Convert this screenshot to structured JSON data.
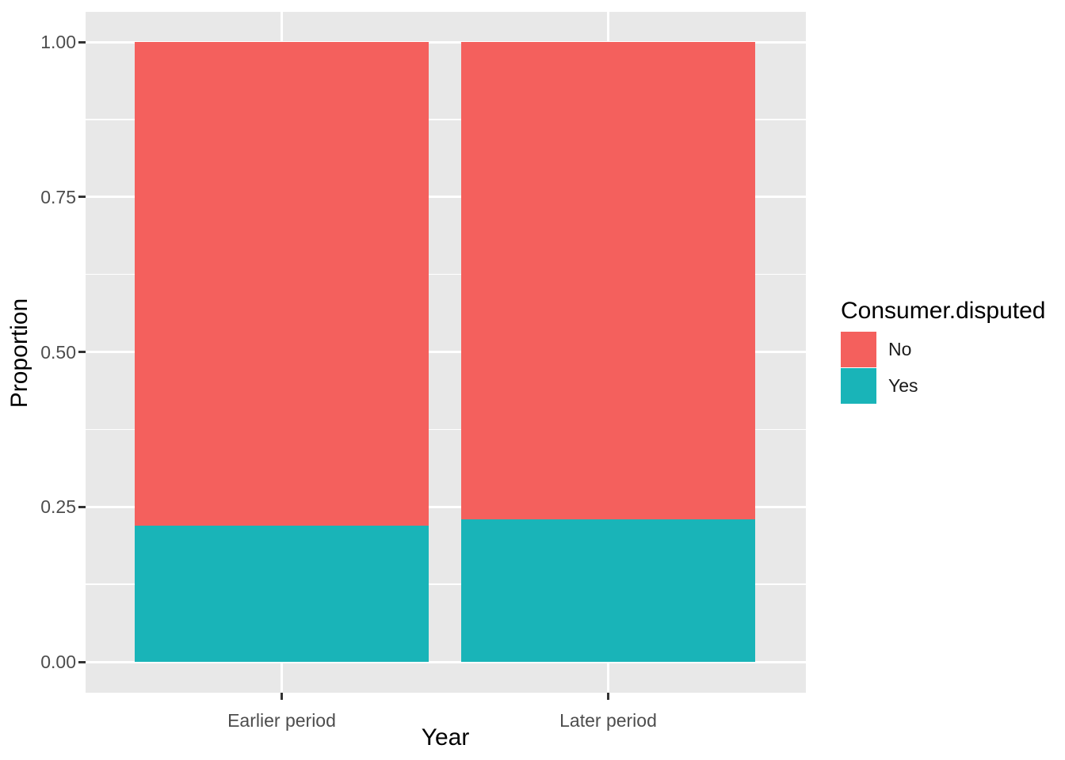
{
  "figure": {
    "background": "#FFFFFF",
    "panel_background": "#E8E8E8",
    "gridline_color": "#FFFFFF",
    "axis_text_color": "#4D4D4D",
    "axis_title_color": "#000000",
    "tick_color": "#333333"
  },
  "chart_data": {
    "type": "bar",
    "stacked": true,
    "normalized": true,
    "title": "",
    "xlabel": "Year",
    "ylabel": "Proportion",
    "categories": [
      "Earlier period",
      "Later period"
    ],
    "series": [
      {
        "name": "No",
        "color": "#F4605D",
        "values": [
          0.78,
          0.77
        ]
      },
      {
        "name": "Yes",
        "color": "#19B4B8",
        "values": [
          0.22,
          0.23
        ]
      }
    ],
    "ylim": [
      0,
      1
    ],
    "y_ticks": [
      {
        "value": 0.0,
        "label": "0.00"
      },
      {
        "value": 0.25,
        "label": "0.25"
      },
      {
        "value": 0.5,
        "label": "0.50"
      },
      {
        "value": 0.75,
        "label": "0.75"
      },
      {
        "value": 1.0,
        "label": "1.00"
      }
    ],
    "y_minor_ticks": [
      0.125,
      0.375,
      0.625,
      0.875
    ],
    "grid": true,
    "legend_position": "right"
  },
  "legend": {
    "title": "Consumer.disputed",
    "entries": [
      {
        "label": "No",
        "color": "#F4605D"
      },
      {
        "label": "Yes",
        "color": "#19B4B8"
      }
    ]
  }
}
